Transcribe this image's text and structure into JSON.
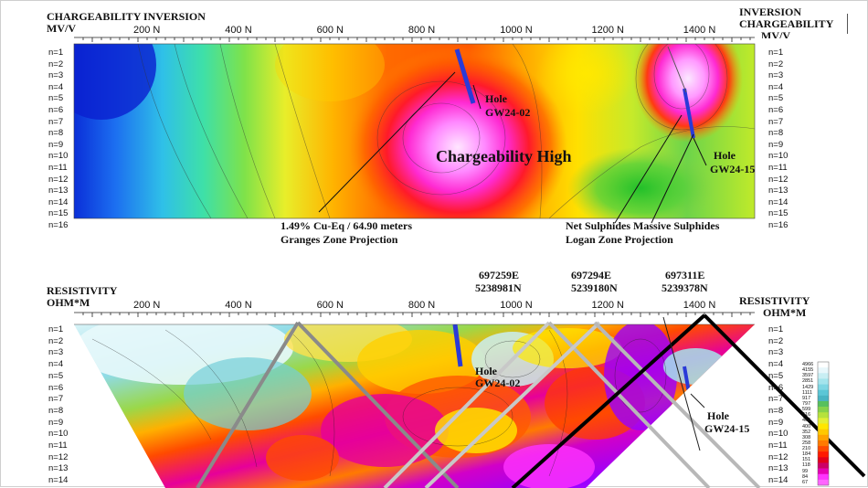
{
  "chart_data": [
    {
      "type": "heatmap",
      "title": "CHARGEABILITY INVERSION",
      "unit_left": "MV/V",
      "title_right_1": "INVERSION",
      "title_right_2": "CHARGEABILITY",
      "unit_right": "MV/V",
      "x_ticks": [
        "200 N",
        "400 N",
        "600 N",
        "800 N",
        "1000 N",
        "1200 N",
        "1400 N"
      ],
      "depth_labels": [
        "n=1",
        "n=2",
        "n=3",
        "n=4",
        "n=5",
        "n=6",
        "n=7",
        "n=8",
        "n=9",
        "n=10",
        "n=11",
        "n=12",
        "n=13",
        "n=14",
        "n=15",
        "n=16"
      ],
      "annotations": {
        "high": "Chargeability High",
        "hole_a_1": "Hole",
        "hole_a_2": "GW24-02",
        "hole_b_1": "Hole",
        "hole_b_2": "GW24-15",
        "granges_1": "1.49% Cu-Eq / 64.90 meters",
        "granges_2": "Granges Zone Projection",
        "logan_1": "Net Sulphides  Massive Sulphides",
        "logan_2": "Logan Zone Projection"
      }
    },
    {
      "type": "heatmap",
      "title": "RESISTIVITY",
      "unit_left": "OHM*M",
      "title_right": "RESISTIVITY",
      "unit_right": "OHM*M",
      "x_ticks": [
        "200 N",
        "400 N",
        "600 N",
        "800 N",
        "1000 N",
        "1200 N",
        "1400 N"
      ],
      "depth_labels": [
        "n=1",
        "n=2",
        "n=3",
        "n=4",
        "n=5",
        "n=6",
        "n=7",
        "n=8",
        "n=9",
        "n=10",
        "n=11",
        "n=12",
        "n=13",
        "n=14"
      ],
      "coordinates": [
        {
          "e": "697259E",
          "n": "5238981N"
        },
        {
          "e": "697294E",
          "n": "5239180N"
        },
        {
          "e": "697311E",
          "n": "5239378N"
        }
      ],
      "annotations": {
        "hole_a_1": "Hole",
        "hole_a_2": "GW24-02",
        "hole_b_1": "Hole",
        "hole_b_2": "GW24-15"
      },
      "legend_values": [
        "4966",
        "4155",
        "3597",
        "2851",
        "1429",
        "1111",
        "917",
        "797",
        "599",
        "516",
        "466",
        "400",
        "352",
        "308",
        "258",
        "210",
        "184",
        "151",
        "118",
        "99",
        "84",
        "67"
      ],
      "legend_colors": [
        "#ffffff",
        "#e8f7fb",
        "#c8eef3",
        "#a4e4ec",
        "#7ed6e3",
        "#5cc6d6",
        "#49b4c3",
        "#57c05e",
        "#86d24a",
        "#b6e23c",
        "#e2ef36",
        "#ffe600",
        "#ffc800",
        "#ffa200",
        "#ff7a00",
        "#ff4a00",
        "#ff1a00",
        "#e3001a",
        "#cc0066",
        "#e600b4",
        "#ff33ff",
        "#ff66ff"
      ]
    }
  ]
}
